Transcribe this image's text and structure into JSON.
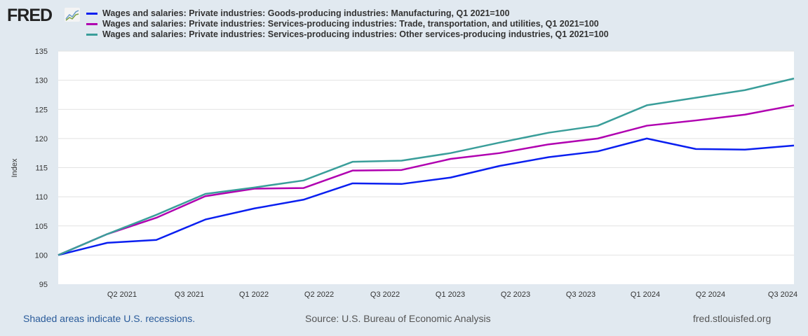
{
  "logo": "FRED",
  "footer": {
    "recessions": "Shaded areas indicate U.S. recessions.",
    "source": "Source: U.S. Bureau of Economic Analysis",
    "site": "fred.stlouisfed.org"
  },
  "chart_data": {
    "type": "line",
    "ylabel": "Index",
    "ylim": [
      95,
      135
    ],
    "yticks": [
      95,
      100,
      105,
      110,
      115,
      120,
      125,
      130,
      135
    ],
    "x": [
      "Q1 2021",
      "Q2 2021",
      "Q3 2021",
      "Q4 2021",
      "Q1 2022",
      "Q2 2022",
      "Q3 2022",
      "Q4 2022",
      "Q1 2023",
      "Q2 2023",
      "Q3 2023",
      "Q4 2023",
      "Q1 2024",
      "Q2 2024",
      "Q3 2024",
      "Q4 2024"
    ],
    "xticks": [
      "Q2 2021",
      "Q3 2021",
      "Q1 2022",
      "Q2 2022",
      "Q3 2022",
      "Q1 2023",
      "Q2 2023",
      "Q3 2023",
      "Q1 2024",
      "Q2 2024",
      "Q3 2024"
    ],
    "grid": true,
    "legend": "top",
    "series": [
      {
        "name": "Wages and salaries: Private industries: Goods-producing industries: Manufacturing, Q1 2021=100",
        "color": "#0a1ff0",
        "values": [
          100,
          102.1,
          102.6,
          106.1,
          108.0,
          109.5,
          112.3,
          112.2,
          113.3,
          115.3,
          116.8,
          117.8,
          120.0,
          118.2,
          118.1,
          118.8
        ]
      },
      {
        "name": "Wages and salaries: Private industries: Services-producing industries: Trade, transportation, and utilities, Q1 2021=100",
        "color": "#b000b0",
        "values": [
          100,
          103.6,
          106.4,
          110.1,
          111.4,
          111.5,
          114.5,
          114.6,
          116.5,
          117.5,
          119.0,
          120.0,
          122.2,
          123.1,
          124.1,
          125.7
        ]
      },
      {
        "name": "Wages and salaries: Private industries: Services-producing industries: Other services-producing industries, Q1 2021=100",
        "color": "#3a9e9a",
        "values": [
          100,
          103.6,
          106.9,
          110.5,
          111.6,
          112.8,
          116.0,
          116.2,
          117.5,
          119.3,
          121.0,
          122.2,
          125.7,
          127.0,
          128.3,
          130.3
        ]
      }
    ]
  }
}
